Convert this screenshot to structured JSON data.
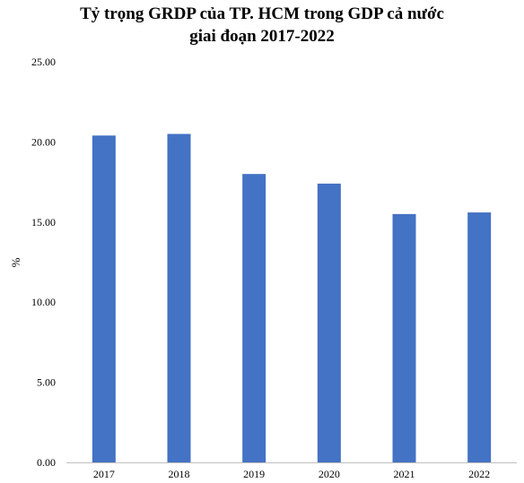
{
  "chart_data": {
    "type": "bar",
    "title_lines": [
      "Tỷ trọng GRDP của TP. HCM trong GDP cả nước",
      "giai đoạn 2017-2022"
    ],
    "xlabel": "",
    "ylabel": "%",
    "categories": [
      "2017",
      "2018",
      "2019",
      "2020",
      "2021",
      "2022"
    ],
    "values": [
      20.4,
      20.5,
      18.0,
      17.4,
      15.5,
      15.6
    ],
    "ylim": [
      0,
      25
    ],
    "yticks": [
      "0.00",
      "5.00",
      "10.00",
      "15.00",
      "20.00",
      "25.00"
    ],
    "grid": false,
    "legend": "none",
    "bar_color": "#4472C4"
  }
}
